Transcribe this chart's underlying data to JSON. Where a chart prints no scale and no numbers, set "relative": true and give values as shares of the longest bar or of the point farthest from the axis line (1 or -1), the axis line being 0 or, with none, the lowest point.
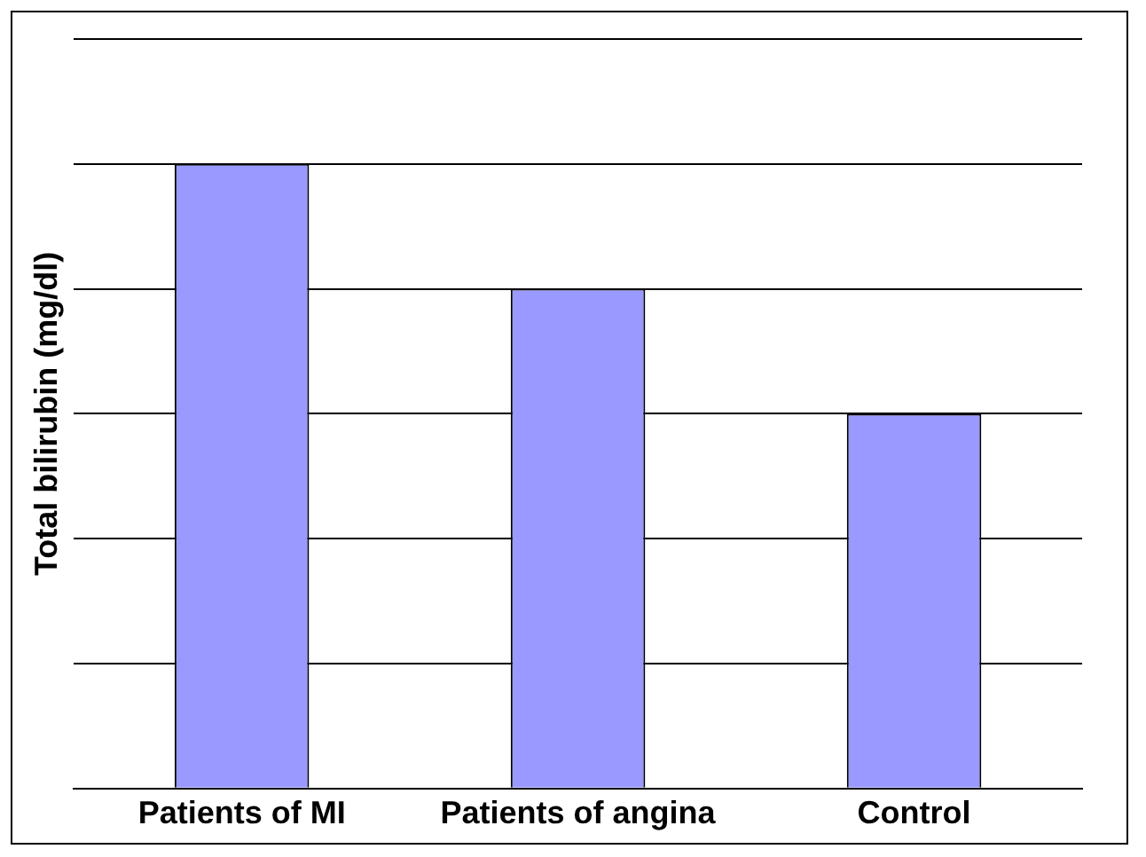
{
  "chart_data": {
    "type": "bar",
    "relative": true,
    "ylabel": "Total bilirubin (mg/dl)",
    "categories": [
      "Patients of MI",
      "Patients of angina",
      "Control"
    ],
    "values": [
      1,
      0.8,
      0.6
    ],
    "color": "#9999ff",
    "grid": "y",
    "legend": false
  }
}
